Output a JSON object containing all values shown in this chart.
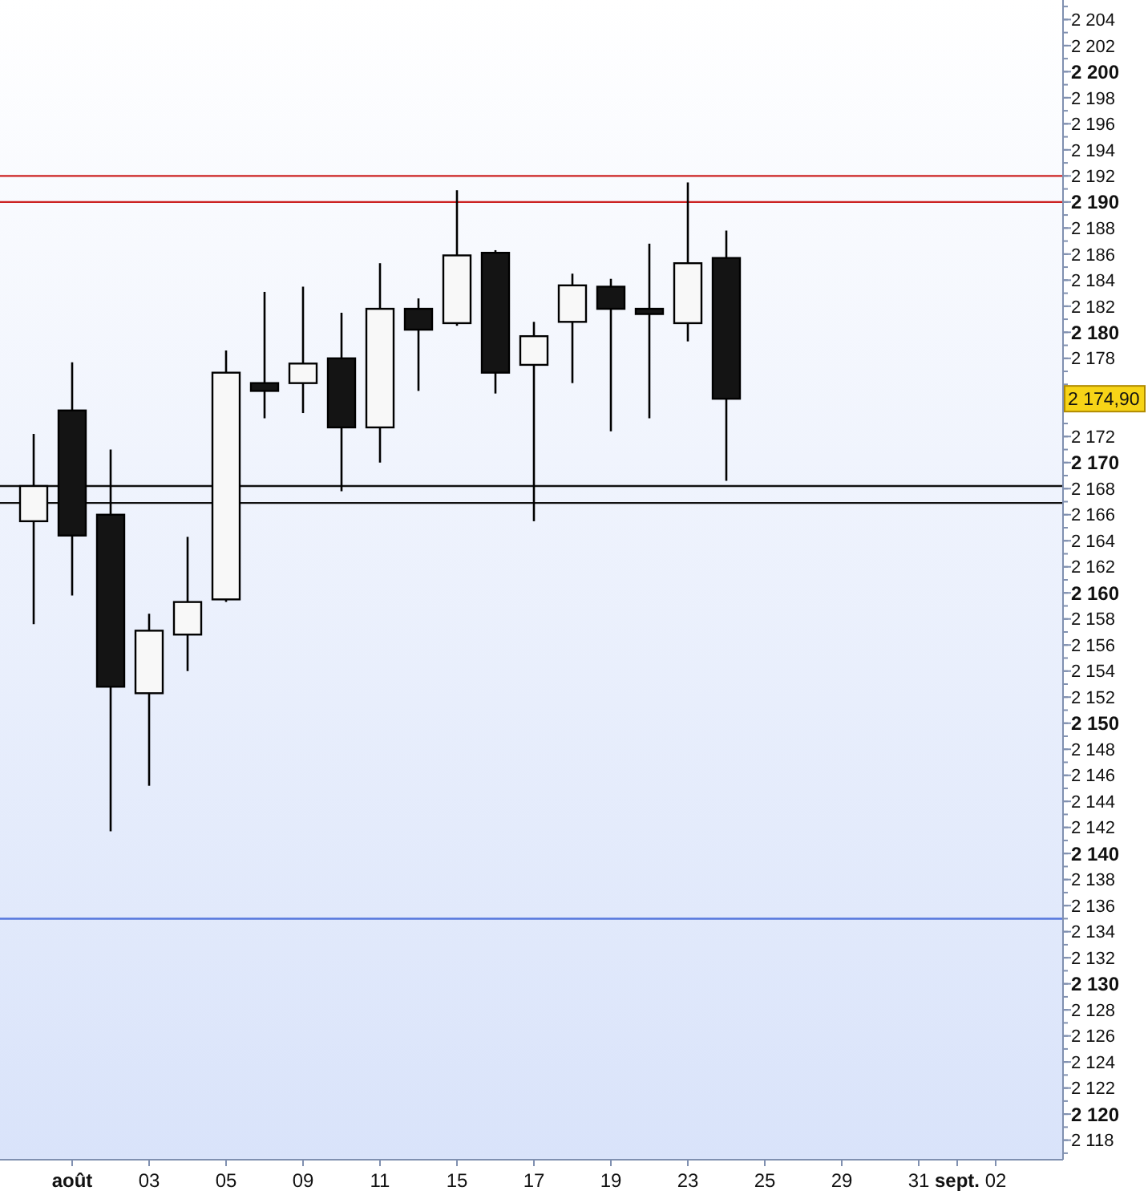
{
  "chart_data": {
    "type": "candlestick",
    "categories": [
      null,
      "août",
      null,
      "03",
      null,
      "05",
      null,
      "09",
      null,
      "11",
      null,
      "15",
      null,
      "17",
      null,
      "19",
      null,
      "23",
      null,
      "25",
      null,
      "29",
      null,
      "31",
      "sept.",
      "02"
    ],
    "ohlc": [
      [
        2165.5,
        2172.2,
        2157.6,
        2168.2
      ],
      [
        2174.0,
        2177.7,
        2159.8,
        2164.4
      ],
      [
        2166.0,
        2171.0,
        2141.7,
        2152.8
      ],
      [
        2152.3,
        2158.4,
        2145.2,
        2157.1
      ],
      [
        2156.8,
        2164.3,
        2154.0,
        2159.3
      ],
      [
        2159.5,
        2178.6,
        2159.3,
        2176.9
      ],
      [
        2176.1,
        2183.1,
        2173.4,
        2175.5
      ],
      [
        2176.1,
        2183.5,
        2173.8,
        2177.6
      ],
      [
        2178.0,
        2181.5,
        2167.8,
        2172.7
      ],
      [
        2172.7,
        2185.3,
        2170.0,
        2181.8
      ],
      [
        2181.8,
        2182.6,
        2175.5,
        2180.2
      ],
      [
        2180.7,
        2190.9,
        2180.5,
        2185.9
      ],
      [
        2186.1,
        2186.3,
        2175.3,
        2176.9
      ],
      [
        2177.5,
        2180.8,
        2165.5,
        2179.7
      ],
      [
        2180.8,
        2184.5,
        2176.1,
        2183.6
      ],
      [
        2183.5,
        2184.1,
        2172.4,
        2181.8
      ],
      [
        2181.8,
        2186.8,
        2173.4,
        2181.4
      ],
      [
        2180.7,
        2191.5,
        2179.3,
        2185.3
      ],
      [
        2185.7,
        2187.8,
        2168.6,
        2174.9
      ],
      null,
      null,
      null,
      null,
      null,
      null,
      null
    ],
    "ylim": [
      2116.5,
      2205.5
    ],
    "yticks": [
      {
        "value": 2118,
        "label": "2 118"
      },
      {
        "value": 2120,
        "label": "2 120"
      },
      {
        "value": 2122,
        "label": "2 122"
      },
      {
        "value": 2124,
        "label": "2 124"
      },
      {
        "value": 2126,
        "label": "2 126"
      },
      {
        "value": 2128,
        "label": "2 128"
      },
      {
        "value": 2130,
        "label": "2 130"
      },
      {
        "value": 2132,
        "label": "2 132"
      },
      {
        "value": 2134,
        "label": "2 134"
      },
      {
        "value": 2136,
        "label": "2 136"
      },
      {
        "value": 2138,
        "label": "2 138"
      },
      {
        "value": 2140,
        "label": "2 140"
      },
      {
        "value": 2142,
        "label": "2 142"
      },
      {
        "value": 2144,
        "label": "2 144"
      },
      {
        "value": 2146,
        "label": "2 146"
      },
      {
        "value": 2148,
        "label": "2 148"
      },
      {
        "value": 2150,
        "label": "2 150"
      },
      {
        "value": 2152,
        "label": "2 152"
      },
      {
        "value": 2154,
        "label": "2 154"
      },
      {
        "value": 2156,
        "label": "2 156"
      },
      {
        "value": 2158,
        "label": "2 158"
      },
      {
        "value": 2160,
        "label": "2 160"
      },
      {
        "value": 2162,
        "label": "2 162"
      },
      {
        "value": 2164,
        "label": "2 164"
      },
      {
        "value": 2166,
        "label": "2 166"
      },
      {
        "value": 2168,
        "label": "2 168"
      },
      {
        "value": 2170,
        "label": "2 170"
      },
      {
        "value": 2172,
        "label": "2 172"
      },
      {
        "value": 2178,
        "label": "2 178"
      },
      {
        "value": 2180,
        "label": "2 180"
      },
      {
        "value": 2182,
        "label": "2 182"
      },
      {
        "value": 2184,
        "label": "2 184"
      },
      {
        "value": 2186,
        "label": "2 186"
      },
      {
        "value": 2188,
        "label": "2 188"
      },
      {
        "value": 2190,
        "label": "2 190"
      },
      {
        "value": 2192,
        "label": "2 192"
      },
      {
        "value": 2194,
        "label": "2 194"
      },
      {
        "value": 2196,
        "label": "2 196"
      },
      {
        "value": 2198,
        "label": "2 198"
      },
      {
        "value": 2200,
        "label": "2 200"
      },
      {
        "value": 2202,
        "label": "2 202"
      },
      {
        "value": 2204,
        "label": "2 204"
      }
    ],
    "ref_lines": [
      {
        "axis": "y",
        "value": 2190,
        "color": "#cc2222"
      },
      {
        "axis": "y",
        "value": 2192,
        "color": "#cc2222"
      },
      {
        "axis": "y",
        "value": 2168.2,
        "color": "#111111"
      },
      {
        "axis": "y",
        "value": 2166.9,
        "color": "#111111"
      },
      {
        "axis": "y",
        "value": 2135,
        "color": "#5577dd"
      }
    ],
    "annotations": [
      "2 174,90"
    ],
    "grid": false
  }
}
